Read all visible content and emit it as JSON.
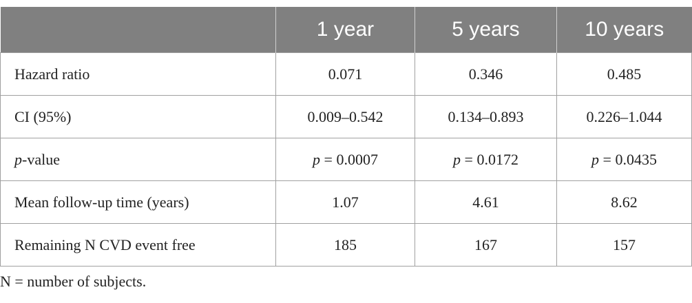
{
  "table": {
    "header": [
      "",
      "1 year",
      "5 years",
      "10 years"
    ],
    "rows": [
      [
        "Hazard ratio",
        "0.071",
        "0.346",
        "0.485"
      ],
      [
        "CI (95%)",
        "0.009–0.542",
        "0.134–0.893",
        "0.226–1.044"
      ],
      [
        {
          "italic": "p",
          "rest": "-value"
        },
        {
          "italic": "p",
          "rest": " = 0.0007"
        },
        {
          "italic": "p",
          "rest": " = 0.0172"
        },
        {
          "italic": "p",
          "rest": " = 0.0435"
        }
      ],
      [
        "Mean follow-up time (years)",
        "1.07",
        "4.61",
        "8.62"
      ],
      [
        "Remaining N CVD event free",
        "185",
        "167",
        "157"
      ]
    ]
  },
  "footnote": "N = number of subjects."
}
